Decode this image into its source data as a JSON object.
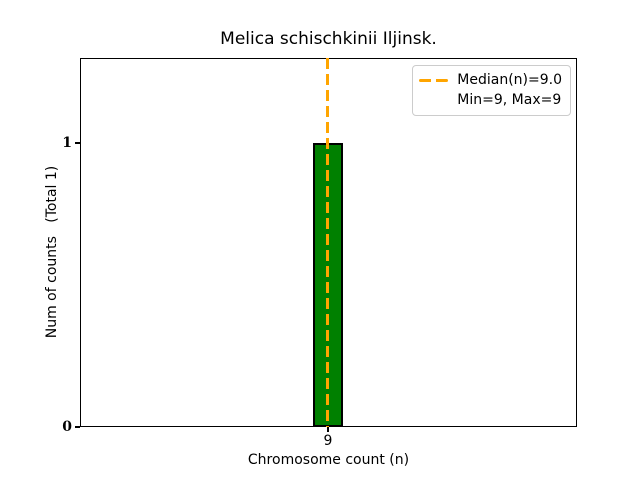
{
  "chart_data": {
    "type": "bar",
    "title": "Melica schischkinii Iljinsk.",
    "xlabel": "Chromosome count (n)",
    "ylabel": "Num of counts   (Total 1)",
    "categories": [
      9
    ],
    "values": [
      1
    ],
    "total_counts": 1,
    "xtick_labels": [
      "9"
    ],
    "ytick_labels": [
      "0",
      "1"
    ],
    "ylim": [
      0,
      1.3
    ],
    "grid": false,
    "median_n": 9.0,
    "min_n": 9,
    "max_n": 9,
    "median_line": {
      "x": 9,
      "style": "dashed",
      "color": "#FFA500"
    },
    "legend": {
      "position": "upper right",
      "entries": [
        {
          "marker": "orange-dashed-line",
          "label": "Median(n)=9.0"
        },
        {
          "marker": "none",
          "label": "Min=9, Max=9"
        }
      ]
    },
    "colors": {
      "bar_fill": "#008000",
      "bar_edge": "#000000",
      "median_line": "#FFA500",
      "spines": "#000000",
      "background": "#ffffff"
    }
  }
}
